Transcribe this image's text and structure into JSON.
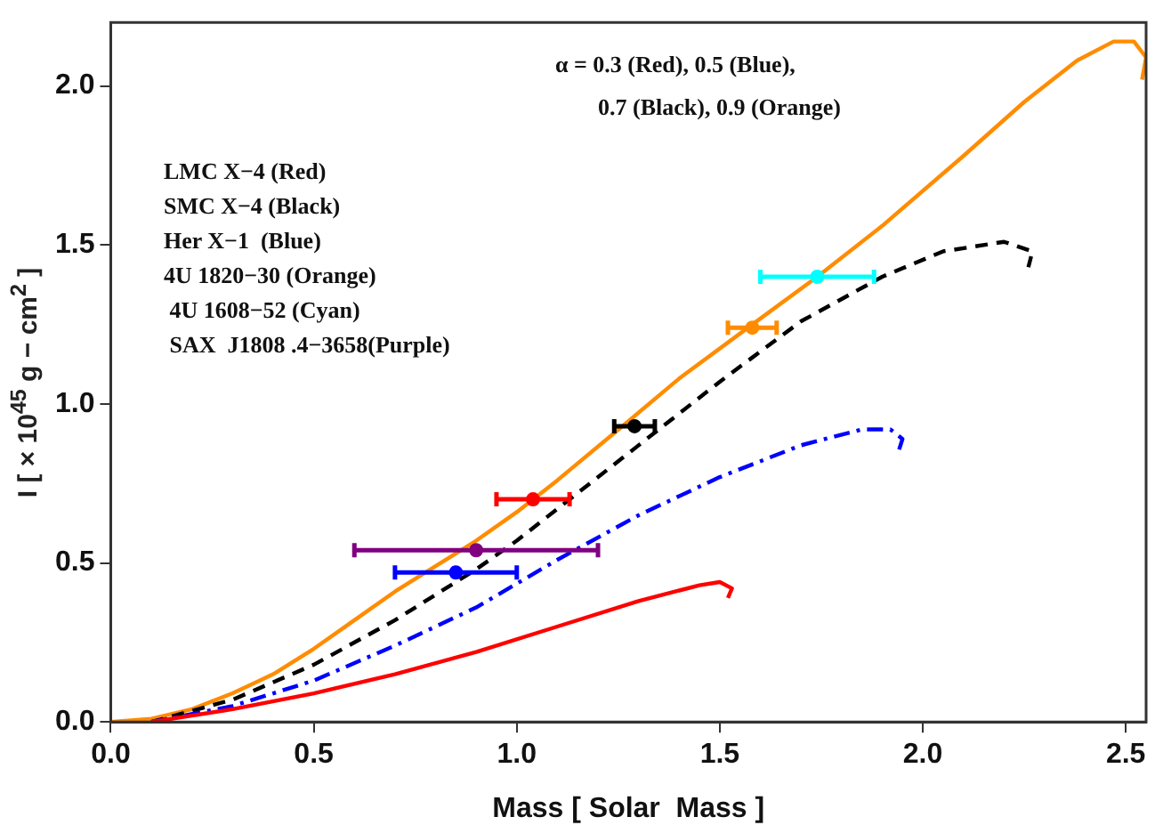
{
  "chart_data": {
    "type": "line",
    "xlabel": "Mass [ Solar  Mass ]",
    "ylabel": "I  [ × 10$^{45}$ g − cm$^{2}$ ]",
    "xlim": [
      0,
      2.55
    ],
    "ylim": [
      0,
      2.2
    ],
    "xticks": [
      {
        "value": 0,
        "label": "0.0"
      },
      {
        "value": 0.5,
        "label": "0.5"
      },
      {
        "value": 1,
        "label": "1.0"
      },
      {
        "value": 1.5,
        "label": "1.5"
      },
      {
        "value": 2,
        "label": "2.0"
      },
      {
        "value": 2.5,
        "label": "2.5"
      }
    ],
    "yticks": [
      {
        "value": 0,
        "label": "0.0"
      },
      {
        "value": 0.5,
        "label": "0.5"
      },
      {
        "value": 1,
        "label": "1.0"
      },
      {
        "value": 1.5,
        "label": "1.5"
      },
      {
        "value": 2,
        "label": "2.0"
      }
    ],
    "grid": false,
    "legend": false,
    "annotations": [
      "α = 0.3 (Red), 0.5 (Blue),",
      "0.7 (Black), 0.9 (Orange)",
      "LMC X−4 (Red)",
      "SMC X−4 (Black)",
      "Her X−1  (Blue)",
      "4U 1820−30 (Orange)",
      " 4U 1608−52 (Cyan)",
      " SAX  J1808 .4−3658(Purple)"
    ],
    "series": [
      {
        "color": "#ff0000",
        "line_style": "solid",
        "x": [
          0.1,
          0.3,
          0.5,
          0.7,
          0.9,
          1.1,
          1.3,
          1.45,
          1.5,
          1.53,
          1.52
        ],
        "values": [
          0,
          0.04,
          0.09,
          0.15,
          0.22,
          0.3,
          0.38,
          0.43,
          0.44,
          0.42,
          0.39
        ]
      },
      {
        "color": "#0000ff",
        "line_style": "dashdot",
        "x": [
          0.1,
          0.3,
          0.5,
          0.7,
          0.9,
          1.1,
          1.3,
          1.5,
          1.7,
          1.85,
          1.92,
          1.95,
          1.94
        ],
        "values": [
          0,
          0.05,
          0.13,
          0.24,
          0.36,
          0.51,
          0.65,
          0.77,
          0.87,
          0.92,
          0.92,
          0.89,
          0.85
        ]
      },
      {
        "color": "#000000",
        "line_style": "dashed",
        "x": [
          0.1,
          0.3,
          0.5,
          0.7,
          0.9,
          1.0,
          1.1,
          1.3,
          1.5,
          1.7,
          1.9,
          2.05,
          2.2,
          2.27,
          2.26
        ],
        "values": [
          0,
          0.07,
          0.18,
          0.32,
          0.48,
          0.57,
          0.67,
          0.87,
          1.07,
          1.26,
          1.4,
          1.48,
          1.51,
          1.48,
          1.43
        ]
      },
      {
        "color": "#ff8c00",
        "line_style": "solid",
        "x": [
          0,
          0.1,
          0.2,
          0.3,
          0.4,
          0.5,
          0.6,
          0.7,
          0.8,
          0.9,
          1.0,
          1.1,
          1.26,
          1.4,
          1.58,
          1.74,
          1.9,
          2.1,
          2.25,
          2.38,
          2.47,
          2.52,
          2.55,
          2.54
        ],
        "values": [
          0,
          0.01,
          0.04,
          0.09,
          0.15,
          0.23,
          0.32,
          0.41,
          0.49,
          0.57,
          0.66,
          0.76,
          0.93,
          1.08,
          1.25,
          1.4,
          1.56,
          1.78,
          1.95,
          2.08,
          2.14,
          2.14,
          2.09,
          2.02
        ]
      },
      {
        "type": "scatter",
        "marker": "circle",
        "color": "#ff0000",
        "x": [
          1.04
        ],
        "values": [
          0.7
        ],
        "xerrors": [
          [
            0.95,
            1.13
          ]
        ]
      },
      {
        "type": "scatter",
        "marker": "circle",
        "color": "#000000",
        "x": [
          1.29
        ],
        "values": [
          0.93
        ],
        "xerrors": [
          [
            1.24,
            1.34
          ]
        ]
      },
      {
        "type": "scatter",
        "marker": "circle",
        "color": "#0000ff",
        "x": [
          0.85
        ],
        "values": [
          0.47
        ],
        "xerrors": [
          [
            0.7,
            1.0
          ]
        ]
      },
      {
        "type": "scatter",
        "marker": "circle",
        "color": "#ff8c00",
        "x": [
          1.58
        ],
        "values": [
          1.24
        ],
        "xerrors": [
          [
            1.52,
            1.64
          ]
        ]
      },
      {
        "type": "scatter",
        "marker": "circle",
        "color": "#00ffff",
        "x": [
          1.74
        ],
        "values": [
          1.4
        ],
        "xerrors": [
          [
            1.6,
            1.88
          ]
        ]
      },
      {
        "type": "scatter",
        "marker": "circle",
        "color": "#800080",
        "x": [
          0.9
        ],
        "values": [
          0.54
        ],
        "xerrors": [
          [
            0.6,
            1.2
          ]
        ]
      }
    ]
  }
}
